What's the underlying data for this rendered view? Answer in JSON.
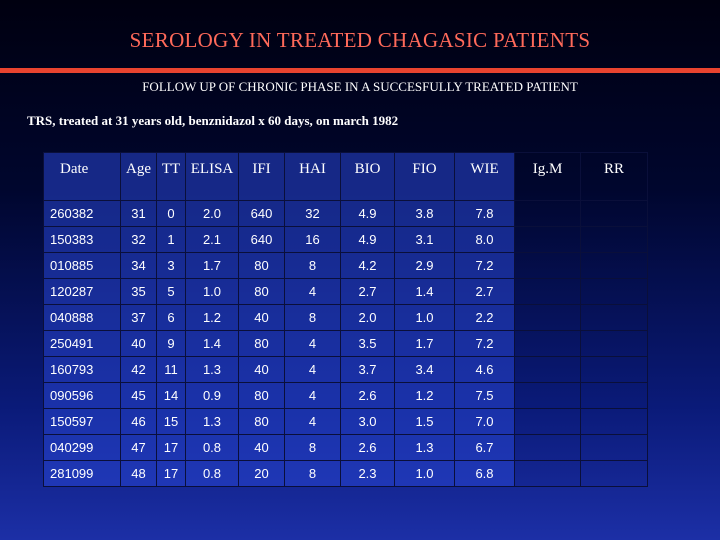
{
  "title": "SEROLOGY IN TREATED CHAGASIC PATIENTS",
  "subtitle": "FOLLOW UP OF CHRONIC  PHASE IN A SUCCESFULLY TREATED PATIENT",
  "caption": "TRS, treated at 31 years old, benznidazol x 60 days, on march 1982",
  "colors": {
    "title": "#ff6a5a",
    "rule": "#e8432f",
    "background_top": "#000010",
    "background_bottom": "#1c2fa6"
  },
  "table": {
    "headers": [
      "Date",
      "Age",
      "TT",
      "ELISA",
      "IFI",
      "HAI",
      "BIO",
      "FIO",
      "WIE",
      "Ig.M",
      "RR"
    ],
    "rows": [
      [
        "260382",
        "31",
        "0",
        "2.0",
        "640",
        "32",
        "4.9",
        "3.8",
        "7.8",
        "",
        ""
      ],
      [
        "150383",
        "32",
        "1",
        "2.1",
        "640",
        "16",
        "4.9",
        "3.1",
        "8.0",
        "",
        ""
      ],
      [
        "010885",
        "34",
        "3",
        "1.7",
        "80",
        "8",
        "4.2",
        "2.9",
        "7.2",
        "",
        ""
      ],
      [
        "120287",
        "35",
        "5",
        "1.0",
        "80",
        "4",
        "2.7",
        "1.4",
        "2.7",
        "",
        ""
      ],
      [
        "040888",
        "37",
        "6",
        "1.2",
        "40",
        "8",
        "2.0",
        "1.0",
        "2.2",
        "",
        ""
      ],
      [
        "250491",
        "40",
        "9",
        "1.4",
        "80",
        "4",
        "3.5",
        "1.7",
        "7.2",
        "",
        ""
      ],
      [
        "160793",
        "42",
        "11",
        "1.3",
        "40",
        "4",
        "3.7",
        "3.4",
        "4.6",
        "",
        ""
      ],
      [
        "090596",
        "45",
        "14",
        "0.9",
        "80",
        "4",
        "2.6",
        "1.2",
        "7.5",
        "",
        ""
      ],
      [
        "150597",
        "46",
        "15",
        "1.3",
        "80",
        "4",
        "3.0",
        "1.5",
        "7.0",
        "",
        ""
      ],
      [
        "040299",
        "47",
        "17",
        "0.8",
        "40",
        "8",
        "2.6",
        "1.3",
        "6.7",
        "",
        ""
      ],
      [
        "281099",
        "48",
        "17",
        "0.8",
        "20",
        "8",
        "2.3",
        "1.0",
        "6.8",
        "",
        ""
      ]
    ]
  }
}
